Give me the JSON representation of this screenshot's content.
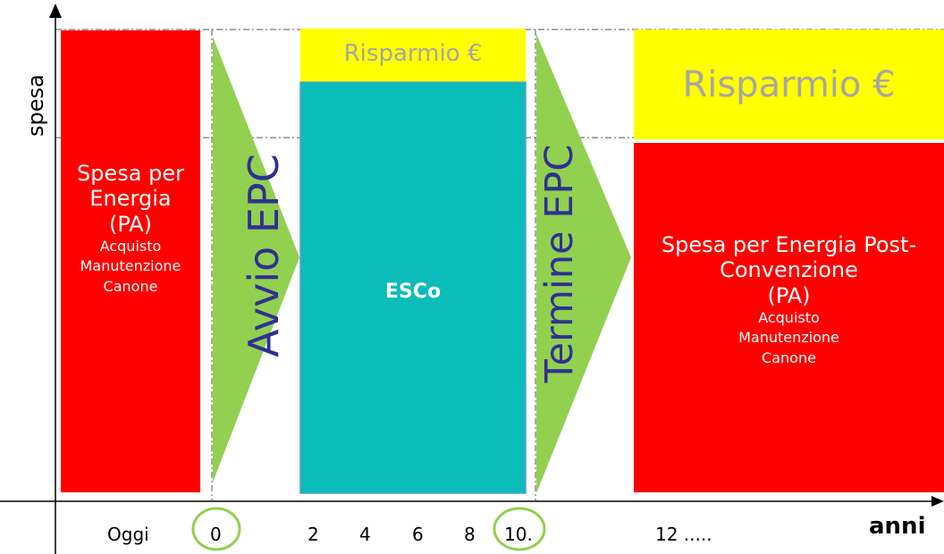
{
  "axes": {
    "y_label": "spesa",
    "x_label": "anni"
  },
  "ticks": {
    "oggi": "Oggi",
    "t0": "0",
    "t2": "2",
    "t4": "4",
    "t6": "6",
    "t8": "8",
    "t10": "10.",
    "t12": "12 ....."
  },
  "box_pa": {
    "lines": [
      "Spesa per",
      "Energia",
      "(PA)"
    ],
    "sub": [
      "Acquisto",
      "Manutenzione",
      "Canone"
    ]
  },
  "arrow_start": "Avvio EPC",
  "arrow_end": "Termine EPC",
  "savings_small": "Risparmio €",
  "savings_large": "Risparmio €",
  "esco": "ESCo",
  "box_post": {
    "lines": [
      "Spesa per Energia Post-",
      "Convenzione",
      "(PA)"
    ],
    "sub": [
      "Acquisto",
      "Manutenzione",
      "Canone"
    ]
  },
  "colors": {
    "red": "#ff0000",
    "yellow": "#ffff00",
    "teal": "#0abcb8",
    "green": "#92d050",
    "arrow_text": "#2e3192",
    "savings_text": "#a6a6a6",
    "circle": "#92d050"
  }
}
